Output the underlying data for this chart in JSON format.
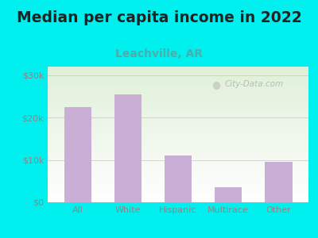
{
  "title": "Median per capita income in 2022",
  "subtitle": "Leachville, AR",
  "categories": [
    "All",
    "White",
    "Hispanic",
    "Multirace",
    "Other"
  ],
  "values": [
    22500,
    25500,
    11000,
    3500,
    9500
  ],
  "bar_color": "#c9aed6",
  "title_fontsize": 13.5,
  "subtitle_fontsize": 10,
  "subtitle_color": "#4aaeaa",
  "title_color": "#222222",
  "background_outer": "#00f0f0",
  "background_inner_top": "#dff0d8",
  "background_inner_bottom": "#ffffff",
  "tick_color": "#888888",
  "yticks": [
    0,
    10000,
    20000,
    30000
  ],
  "ytick_labels": [
    "$0",
    "$10k",
    "$20k",
    "$30k"
  ],
  "ylim": [
    0,
    32000
  ],
  "watermark": "City-Data.com"
}
